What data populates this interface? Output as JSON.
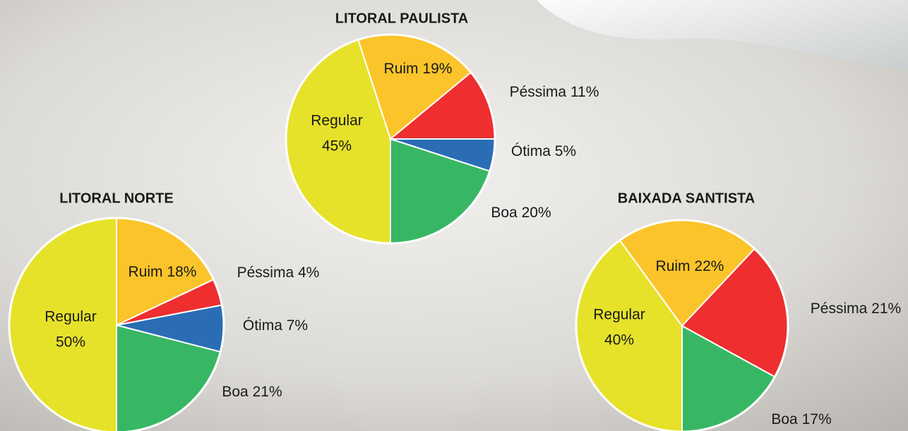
{
  "chart_data": [
    {
      "type": "pie",
      "title": "LITORAL PAULISTA",
      "categories": [
        "Regular",
        "Ruim",
        "Péssima",
        "Ótima",
        "Boa"
      ],
      "values": [
        45,
        19,
        11,
        5,
        20
      ],
      "value_labels": [
        "45%",
        "19%",
        "11%",
        "5%",
        "20%"
      ],
      "colors": [
        "#e6e22a",
        "#fbc42a",
        "#ee2e2f",
        "#2a6db5",
        "#37b764"
      ]
    },
    {
      "type": "pie",
      "title": "LITORAL NORTE",
      "categories": [
        "Regular",
        "Ruim",
        "Péssima",
        "Ótima",
        "Boa"
      ],
      "values": [
        50,
        18,
        4,
        7,
        21
      ],
      "value_labels": [
        "50%",
        "18%",
        "4%",
        "7%",
        "21%"
      ],
      "colors": [
        "#e6e22a",
        "#fbc42a",
        "#ee2e2f",
        "#2a6db5",
        "#37b764"
      ]
    },
    {
      "type": "pie",
      "title": "BAIXADA SANTISTA",
      "categories": [
        "Regular",
        "Ruim",
        "Péssima",
        "Boa"
      ],
      "values": [
        40,
        22,
        21,
        17
      ],
      "value_labels": [
        "40%",
        "22%",
        "21%",
        "17%"
      ],
      "colors": [
        "#e6e22a",
        "#fbc42a",
        "#ee2e2f",
        "#37b764"
      ]
    }
  ]
}
